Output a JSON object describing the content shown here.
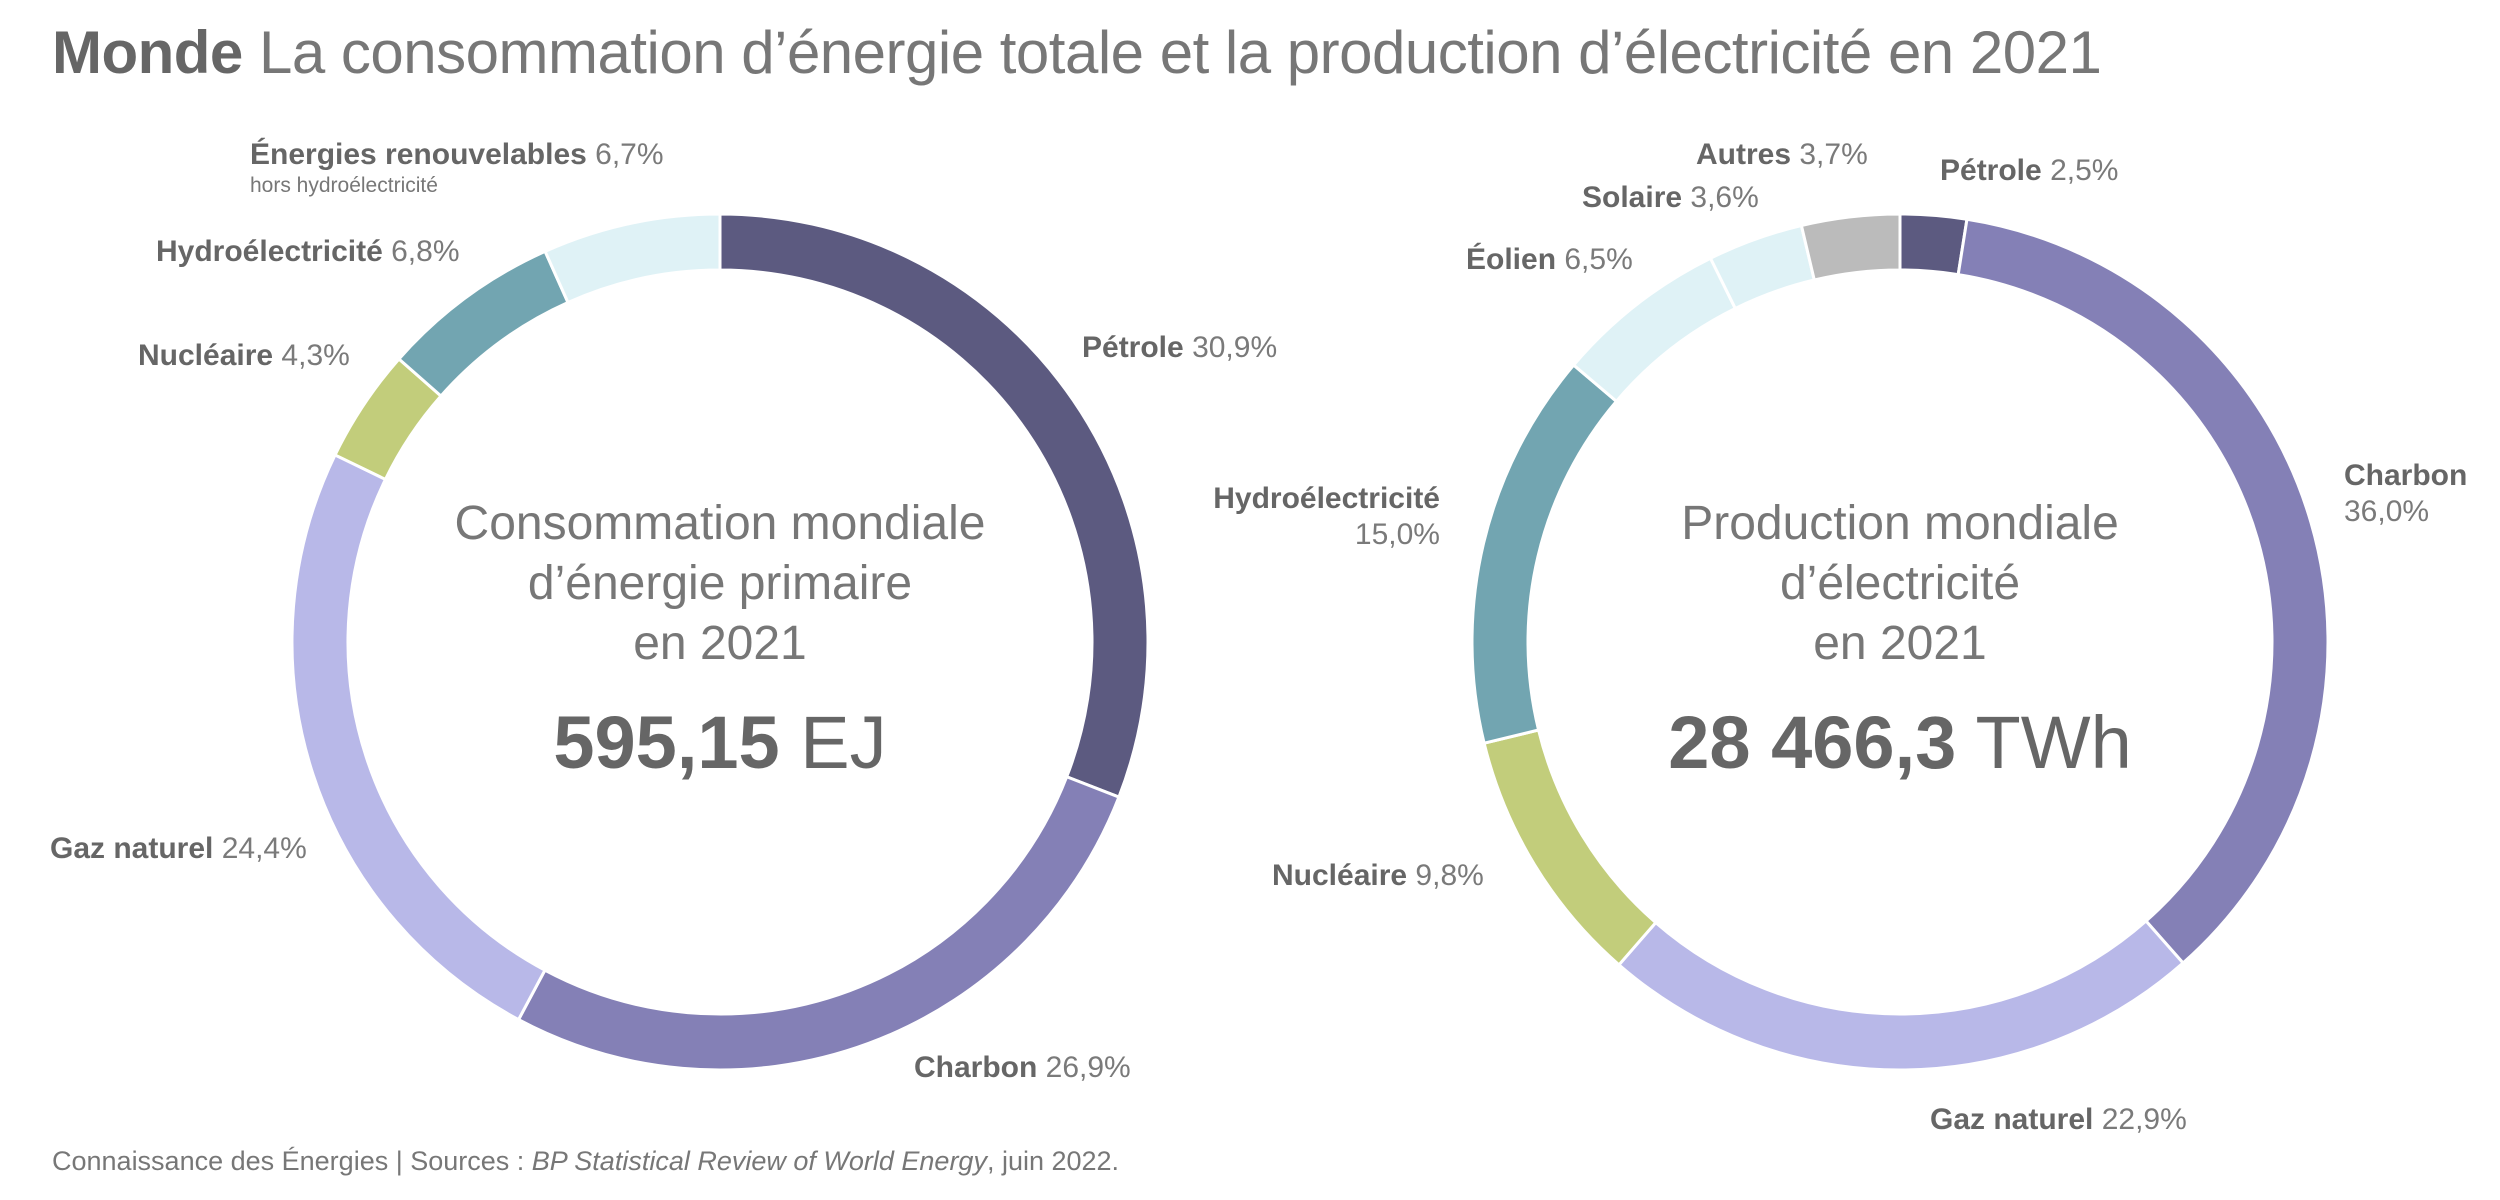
{
  "title": {
    "bold": "Monde",
    "rest": "La consommation d’énergie totale et la production d’électricité en 2021"
  },
  "chart_data": [
    {
      "type": "pie",
      "subtype": "donut",
      "center_text": [
        "Consommation mondiale",
        "d’énergie primaire",
        "en 2021"
      ],
      "total_value": "595,15",
      "total_unit": "EJ",
      "categories": [
        "Pétrole",
        "Charbon",
        "Gaz naturel",
        "Nucléaire",
        "Hydroélectricité",
        "Énergies renouvelables"
      ],
      "values": [
        30.9,
        26.9,
        24.4,
        4.3,
        6.8,
        6.7
      ],
      "labels": [
        "30,9%",
        "26,9%",
        "24,4%",
        "4,3%",
        "6,8%",
        "6,7%"
      ],
      "sublabels": [
        "",
        "",
        "",
        "",
        "",
        "hors hydroélectricité"
      ],
      "colors": [
        "#5c5a80",
        "#8480b6",
        "#b8b8e8",
        "#c2cd7b",
        "#72a5b1",
        "#dff2f6"
      ]
    },
    {
      "type": "pie",
      "subtype": "donut",
      "center_text": [
        "Production mondiale",
        "d’électricité",
        "en 2021"
      ],
      "total_value": "28 466,3",
      "total_unit": "TWh",
      "categories": [
        "Pétrole",
        "Charbon",
        "Gaz naturel",
        "Nucléaire",
        "Hydroélectricité",
        "Éolien",
        "Solaire",
        "Autres"
      ],
      "values": [
        2.5,
        36.0,
        22.9,
        9.8,
        15.0,
        6.5,
        3.6,
        3.7
      ],
      "labels": [
        "2,5%",
        "36,0%",
        "22,9%",
        "9,8%",
        "15,0%",
        "6,5%",
        "3,6%",
        "3,7%"
      ],
      "colors": [
        "#5c5a80",
        "#8480b6",
        "#b8b8e8",
        "#c2cd7b",
        "#72a5b1",
        "#dff2f6",
        "#dff2f6",
        "#bbbbbb"
      ]
    }
  ],
  "footer": {
    "prefix": "Connaissance des Énergies | Sources : ",
    "source_italic": "BP Statistical Review of World Energy",
    "suffix": ", juin 2022."
  }
}
